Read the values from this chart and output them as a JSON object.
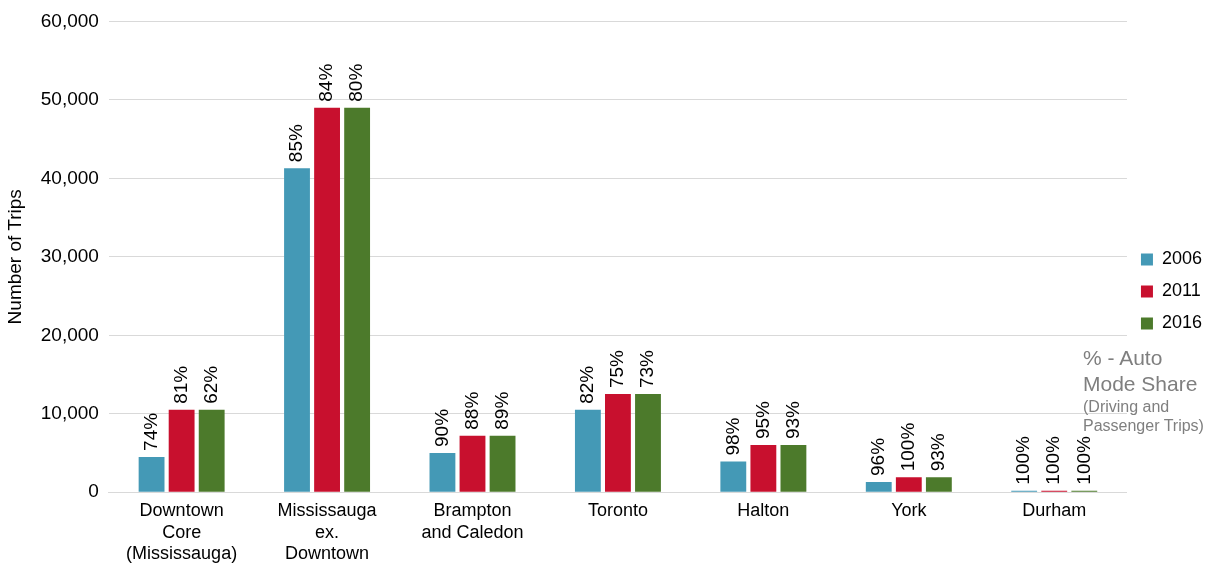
{
  "chart_data": {
    "type": "bar",
    "ylabel": "Number of Trips",
    "categories": [
      "Downtown Core (Mississauga)",
      "Mississauga ex. Downtown",
      "Brampton and Caledon",
      "Toronto",
      "Halton",
      "York",
      "Durham"
    ],
    "series": [
      {
        "name": "2006",
        "color": "#4499b6",
        "values": [
          4500,
          41300,
          5000,
          10500,
          3900,
          1300,
          200
        ]
      },
      {
        "name": "2011",
        "color": "#c8102e",
        "values": [
          10500,
          49000,
          7200,
          12500,
          6000,
          1900,
          200
        ]
      },
      {
        "name": "2016",
        "color": "#4c7a2b",
        "values": [
          10500,
          49000,
          7200,
          12500,
          6000,
          1900,
          200
        ]
      }
    ],
    "ylim": [
      0,
      60000
    ],
    "yticks": [
      0,
      {
        "value": 10000,
        "label": "10,000"
      },
      {
        "value": 20000,
        "label": "20,000"
      },
      {
        "value": 30000,
        "label": "30,000"
      },
      {
        "value": 40000,
        "label": "40,000"
      },
      {
        "value": 50000,
        "label": "50,000"
      },
      {
        "value": 60000,
        "label": "60,000"
      }
    ],
    "grid": "y",
    "legend": "right",
    "annotations": [
      "74%",
      "81%",
      "62%",
      "85%",
      "84%",
      "80%",
      "90%",
      "88%",
      "89%",
      "82%",
      "75%",
      "73%",
      "98%",
      "95%",
      "93%",
      "96%",
      "100%",
      "93%",
      "100%",
      "100%",
      "100%",
      "% - Auto Mode Share",
      "(Driving and Passenger Trips)"
    ]
  }
}
